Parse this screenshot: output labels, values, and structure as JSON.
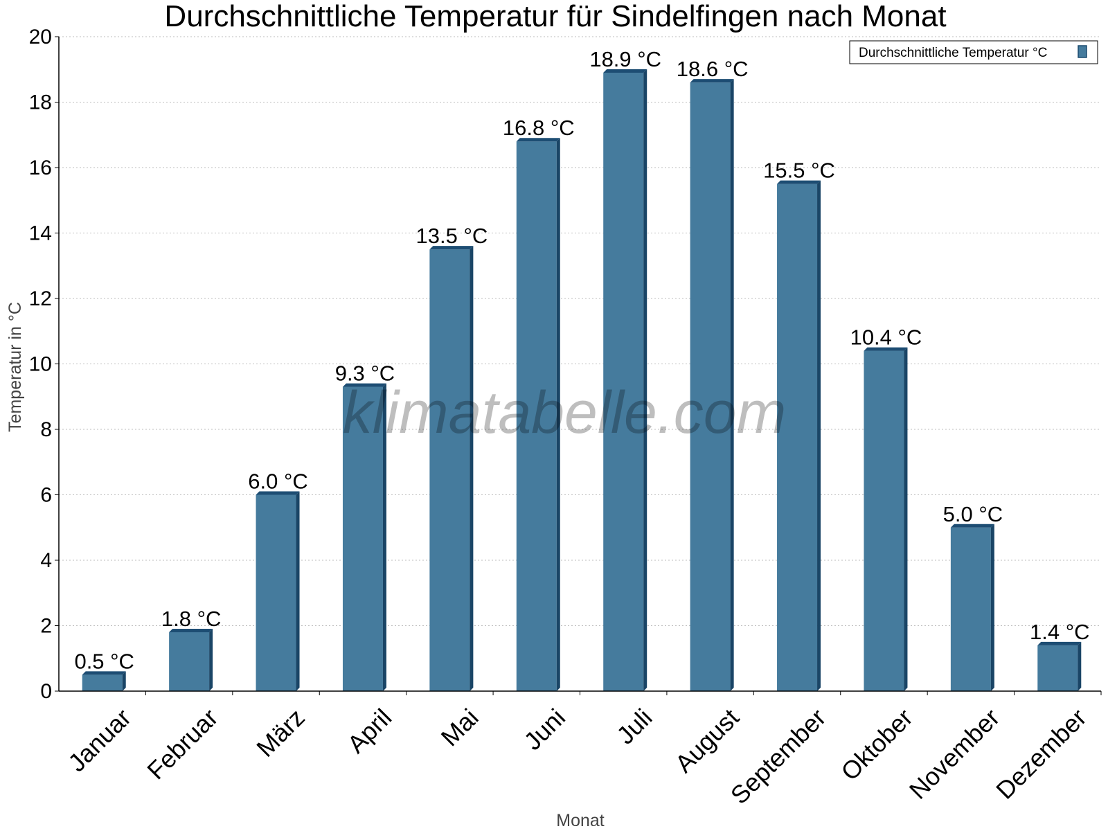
{
  "chart_data": {
    "type": "bar",
    "title": "Durchschnittliche Temperatur für Sindelfingen nach Monat",
    "xlabel": "Monat",
    "ylabel": "Temperatur in °C",
    "ylim": [
      0,
      20
    ],
    "yticks": [
      "0",
      "2",
      "4",
      "6",
      "8",
      "10",
      "12",
      "14",
      "16",
      "18",
      "20"
    ],
    "grid": true,
    "legend_position": "top-right",
    "categories": [
      "Januar",
      "Februar",
      "März",
      "April",
      "Mai",
      "Juni",
      "Juli",
      "August",
      "September",
      "Oktober",
      "November",
      "Dezember"
    ],
    "series": [
      {
        "name": "Durchschnittliche Temperatur °C",
        "color": "#457b9d",
        "values": [
          0.5,
          1.8,
          6.0,
          9.3,
          13.5,
          16.8,
          18.9,
          18.6,
          15.5,
          10.4,
          5.0,
          1.4
        ],
        "labels": [
          "0.5 °C",
          "1.8 °C",
          "6.0 °C",
          "9.3 °C",
          "13.5 °C",
          "16.8 °C",
          "18.9 °C",
          "18.6 °C",
          "15.5 °C",
          "10.4 °C",
          "5.0 °C",
          "1.4 °C"
        ]
      }
    ]
  },
  "watermark": "klimatabelle.com"
}
